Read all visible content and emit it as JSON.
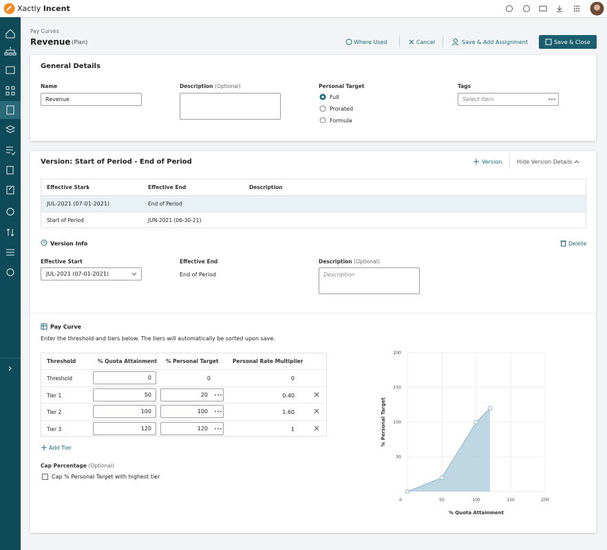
{
  "header": {
    "brand": "Xactly",
    "product": "Incent"
  },
  "breadcrumb": "Pay Curves",
  "page_title": "Revenue",
  "page_subtitle": "(Plan)",
  "actions": [
    "Where Used",
    "Cancel",
    "Save & Add Assignment",
    "Save & Close"
  ],
  "general_details": {
    "title": "General Details",
    "name_label": "Name",
    "name_value": "Revenue",
    "description_label": "Description",
    "description_optional": "(Optional)",
    "personal_target_label": "Personal Target",
    "personal_target_options": [
      "Full",
      "Prorated",
      "Formula"
    ],
    "tags_label": "Tags",
    "tags_placeholder": "Select Item"
  },
  "version": {
    "title": "Version: Start of Period - End of Period",
    "add_version": "Version",
    "hide_details": "Hide Version Details",
    "columns": [
      "Effective Start",
      "Effective End",
      "Description"
    ],
    "rows": [
      [
        "JUL-2021 (07-01-2021)",
        "End of Period"
      ],
      [
        "Start of Period",
        "JUN-2021 (06-30-21)"
      ]
    ]
  },
  "version_info": {
    "title": "Version Info",
    "delete": "Delete",
    "effective_start_label": "Effective Start",
    "effective_start_value": "JUL-2021 (07-01-2021)",
    "effective_end_label": "Effective End",
    "effective_end_value": "End of Period",
    "description_label": "Description",
    "description_optional": "(Optional)",
    "description_placeholder": "Description"
  },
  "pay_curve": {
    "title": "Pay Curve",
    "instructions": "Enter the threshold and tiers below. The tiers will automatically be sorted upon save.",
    "columns": [
      "Threshold",
      "% Quota Attainment",
      "% Personal Target",
      "Personal Rate Multiplier"
    ],
    "rows": [
      {
        "tier": "Threshold",
        "quota": 0,
        "target": 0,
        "multiplier": 0
      },
      {
        "tier": "Tier 1",
        "quota": 50,
        "target": 20,
        "multiplier": "0.40"
      },
      {
        "tier": "Tier 2",
        "quota": 100,
        "target": 100,
        "multiplier": "1.60"
      },
      {
        "tier": "Tier 3",
        "quota": 120,
        "target": 120,
        "multiplier": 1
      }
    ],
    "add_tier": "Add Tier",
    "cap_label": "Cap Percentage",
    "cap_optional": "(Optional)",
    "cap_checkbox": "Cap % Personal Target with highest tier"
  },
  "chart_data": {
    "type": "area",
    "x": [
      0,
      50,
      100,
      120
    ],
    "values": [
      0,
      20,
      100,
      120
    ],
    "xlabel": "% Quota Attainment",
    "ylabel": "% Personal Target",
    "xlim": [
      0,
      200
    ],
    "ylim": [
      0,
      200
    ],
    "xticks": [
      0,
      50,
      100,
      150,
      200
    ],
    "yticks": [
      50,
      100,
      150,
      200
    ],
    "color": "#a9c9d8",
    "line_color": "#8fb6c8",
    "grid": true
  }
}
